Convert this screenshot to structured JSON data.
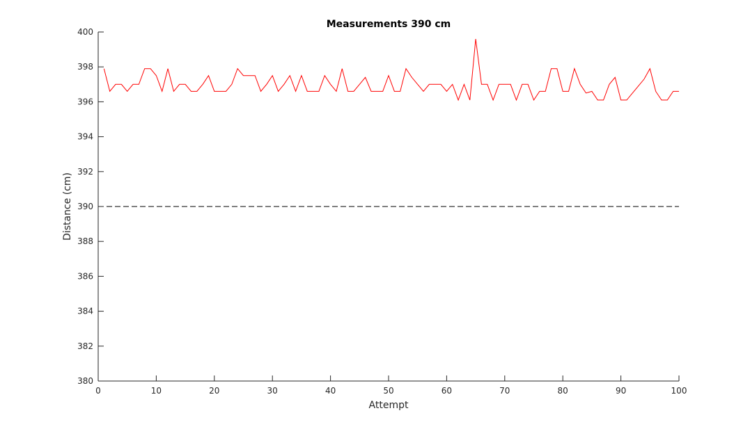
{
  "chart_data": {
    "type": "line",
    "title": "Measurements 390 cm",
    "xlabel": "Attempt",
    "ylabel": "Distance (cm)",
    "xlim": [
      0,
      100
    ],
    "ylim": [
      380,
      400
    ],
    "xticks": [
      0,
      10,
      20,
      30,
      40,
      50,
      60,
      70,
      80,
      90,
      100
    ],
    "yticks": [
      380,
      382,
      384,
      386,
      388,
      390,
      392,
      394,
      396,
      398,
      400
    ],
    "grid": false,
    "legend": "none",
    "series": [
      {
        "color": "#ff0000",
        "style": "solid",
        "x": [
          1,
          2,
          3,
          4,
          5,
          6,
          7,
          8,
          9,
          10,
          11,
          12,
          13,
          14,
          15,
          16,
          17,
          18,
          19,
          20,
          21,
          22,
          23,
          24,
          25,
          26,
          27,
          28,
          29,
          30,
          31,
          32,
          33,
          34,
          35,
          36,
          37,
          38,
          39,
          40,
          41,
          42,
          43,
          44,
          45,
          46,
          47,
          48,
          49,
          50,
          51,
          52,
          53,
          54,
          55,
          56,
          57,
          58,
          59,
          60,
          61,
          62,
          63,
          64,
          65,
          66,
          67,
          68,
          69,
          70,
          71,
          72,
          73,
          74,
          75,
          76,
          77,
          78,
          79,
          80,
          81,
          82,
          83,
          84,
          85,
          86,
          87,
          88,
          89,
          90,
          91,
          92,
          93,
          94,
          95,
          96,
          97,
          98,
          99,
          100
        ],
        "values": [
          397.9,
          396.6,
          397.0,
          397.0,
          396.6,
          397.0,
          397.0,
          397.9,
          397.9,
          397.5,
          396.6,
          397.9,
          396.6,
          397.0,
          397.0,
          396.6,
          396.6,
          397.0,
          397.5,
          396.6,
          396.6,
          396.6,
          397.0,
          397.9,
          397.5,
          397.5,
          397.5,
          396.6,
          397.0,
          397.5,
          396.6,
          397.0,
          397.5,
          396.6,
          397.5,
          396.6,
          396.6,
          396.6,
          397.5,
          397.0,
          396.6,
          397.9,
          396.6,
          396.6,
          397.0,
          397.4,
          396.6,
          396.6,
          396.6,
          397.5,
          396.6,
          396.6,
          397.9,
          397.4,
          397.0,
          396.6,
          397.0,
          397.0,
          397.0,
          396.6,
          397.0,
          396.1,
          397.0,
          396.1,
          399.6,
          397.0,
          397.0,
          396.1,
          397.0,
          397.0,
          397.0,
          396.1,
          397.0,
          397.0,
          396.1,
          396.6,
          396.6,
          397.9,
          397.9,
          396.6,
          396.6,
          397.9,
          397.0,
          396.5,
          396.6,
          396.1,
          396.1,
          397.0,
          397.4,
          396.1,
          396.1,
          396.5,
          396.9,
          397.3,
          397.9,
          396.6,
          396.1,
          396.1,
          396.6,
          396.6
        ]
      }
    ],
    "reference_lines": [
      {
        "y": 390,
        "color": "#000000",
        "style": "dashed"
      }
    ]
  }
}
